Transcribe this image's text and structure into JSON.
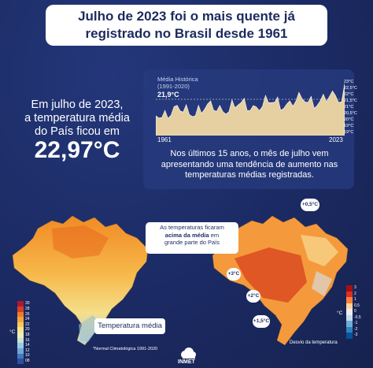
{
  "header": {
    "line1": "Julho de 2023 foi o mais quente já",
    "line2": "registrado no Brasil desde 1961"
  },
  "highlight": {
    "line1": "Em julho de 2023,",
    "line2": "a temperatura média",
    "line3": "do País ficou em",
    "value": "22,97°C"
  },
  "history_chart": {
    "caption_line1": "Média Histórica",
    "caption_line2": "(1991-2020)",
    "reference": "21,9°C",
    "x_start": "1961",
    "x_end": "2023",
    "y_ticks": [
      "23°C",
      "22,5°C",
      "22°C",
      "21,5°C",
      "21°C",
      "20,5°C",
      "20°C",
      "19°C",
      "19°C"
    ],
    "description_line1": "Nos últimos 15 anos, o mês de julho vem",
    "description_line2": "apresentando uma tendência de aumento nas",
    "description_line3": "temperaturas médias registradas.",
    "line_color": "#ffffff",
    "fill_color": "#e6cfa0"
  },
  "annotation": {
    "line1": "As temperaturas ficaram",
    "line2_bold": "acima da média",
    "line2_rest": " em",
    "line3": "grande parte do País"
  },
  "left_map": {
    "label": "Temperatura média",
    "unit": "°C",
    "legend": [
      "30",
      "28",
      "26",
      "24",
      "22",
      "20",
      "18",
      "16",
      "14",
      "12",
      "10",
      "08"
    ],
    "footnote": "*Normal Climatológica 1991-2020"
  },
  "right_map": {
    "pills": [
      "+0,5°C",
      "+3°C",
      "+2°C",
      "+1,5°C"
    ],
    "unit": "°C",
    "legend": [
      "3",
      "2",
      "1",
      "0,5",
      "0",
      "-0,5",
      "-1",
      "-2",
      "-3"
    ],
    "label": "Desvio da temperatura"
  },
  "logo": {
    "name": "INMET",
    "icon": "cloud-logo-icon"
  }
}
